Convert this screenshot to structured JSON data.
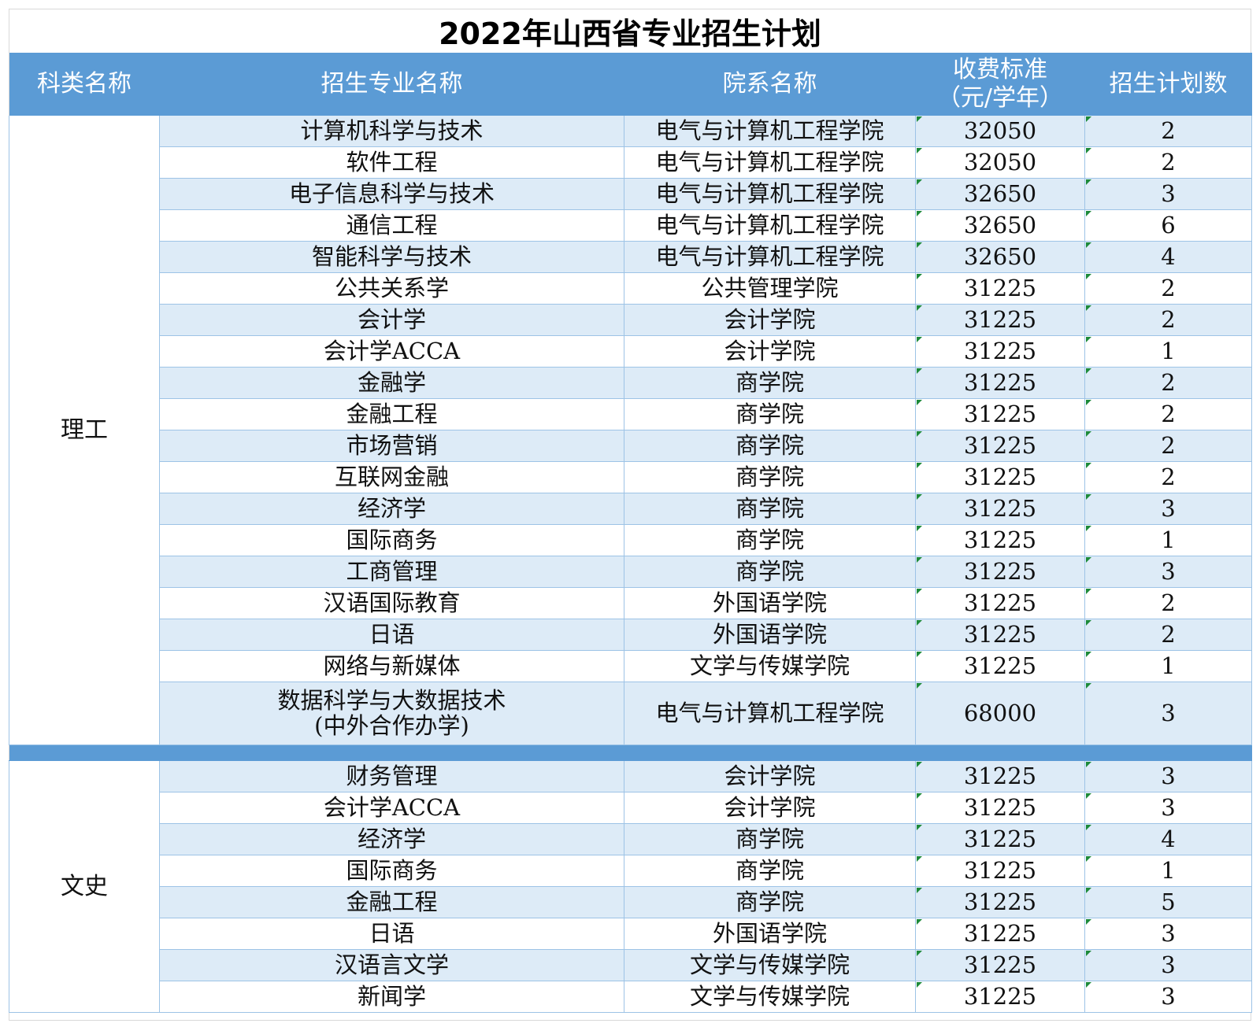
{
  "title": "2022年山西省专业招生计划",
  "headers": {
    "category": "科类名称",
    "major": "招生专业名称",
    "department": "院系名称",
    "fee_line1": "收费标准",
    "fee_line2": "（元/学年）",
    "quota": "招生计划数"
  },
  "groups": [
    {
      "category": "理工",
      "rows": [
        {
          "major": "计算机科学与技术",
          "department": "电气与计算机工程学院",
          "fee": "32050",
          "quota": "2"
        },
        {
          "major": "软件工程",
          "department": "电气与计算机工程学院",
          "fee": "32050",
          "quota": "2"
        },
        {
          "major": "电子信息科学与技术",
          "department": "电气与计算机工程学院",
          "fee": "32650",
          "quota": "3"
        },
        {
          "major": "通信工程",
          "department": "电气与计算机工程学院",
          "fee": "32650",
          "quota": "6"
        },
        {
          "major": "智能科学与技术",
          "department": "电气与计算机工程学院",
          "fee": "32650",
          "quota": "4"
        },
        {
          "major": "公共关系学",
          "department": "公共管理学院",
          "fee": "31225",
          "quota": "2"
        },
        {
          "major": "会计学",
          "department": "会计学院",
          "fee": "31225",
          "quota": "2"
        },
        {
          "major": "会计学ACCA",
          "department": "会计学院",
          "fee": "31225",
          "quota": "1"
        },
        {
          "major": "金融学",
          "department": "商学院",
          "fee": "31225",
          "quota": "2"
        },
        {
          "major": "金融工程",
          "department": "商学院",
          "fee": "31225",
          "quota": "2"
        },
        {
          "major": "市场营销",
          "department": "商学院",
          "fee": "31225",
          "quota": "2"
        },
        {
          "major": "互联网金融",
          "department": "商学院",
          "fee": "31225",
          "quota": "2"
        },
        {
          "major": "经济学",
          "department": "商学院",
          "fee": "31225",
          "quota": "3"
        },
        {
          "major": "国际商务",
          "department": "商学院",
          "fee": "31225",
          "quota": "1"
        },
        {
          "major": "工商管理",
          "department": "商学院",
          "fee": "31225",
          "quota": "3"
        },
        {
          "major": "汉语国际教育",
          "department": "外国语学院",
          "fee": "31225",
          "quota": "2"
        },
        {
          "major": "日语",
          "department": "外国语学院",
          "fee": "31225",
          "quota": "2"
        },
        {
          "major": "网络与新媒体",
          "department": "文学与传媒学院",
          "fee": "31225",
          "quota": "1"
        },
        {
          "major": "数据科学与大数据技术",
          "major_line2": "(中外合作办学)",
          "department": "电气与计算机工程学院",
          "fee": "68000",
          "quota": "3"
        }
      ]
    },
    {
      "category": "文史",
      "rows": [
        {
          "major": "财务管理",
          "department": "会计学院",
          "fee": "31225",
          "quota": "3"
        },
        {
          "major": "会计学ACCA",
          "department": "会计学院",
          "fee": "31225",
          "quota": "3"
        },
        {
          "major": "经济学",
          "department": "商学院",
          "fee": "31225",
          "quota": "4"
        },
        {
          "major": "国际商务",
          "department": "商学院",
          "fee": "31225",
          "quota": "1"
        },
        {
          "major": "金融工程",
          "department": "商学院",
          "fee": "31225",
          "quota": "5"
        },
        {
          "major": "日语",
          "department": "外国语学院",
          "fee": "31225",
          "quota": "3"
        },
        {
          "major": "汉语言文学",
          "department": "文学与传媒学院",
          "fee": "31225",
          "quota": "3"
        },
        {
          "major": "新闻学",
          "department": "文学与传媒学院",
          "fee": "31225",
          "quota": "3"
        }
      ]
    }
  ]
}
